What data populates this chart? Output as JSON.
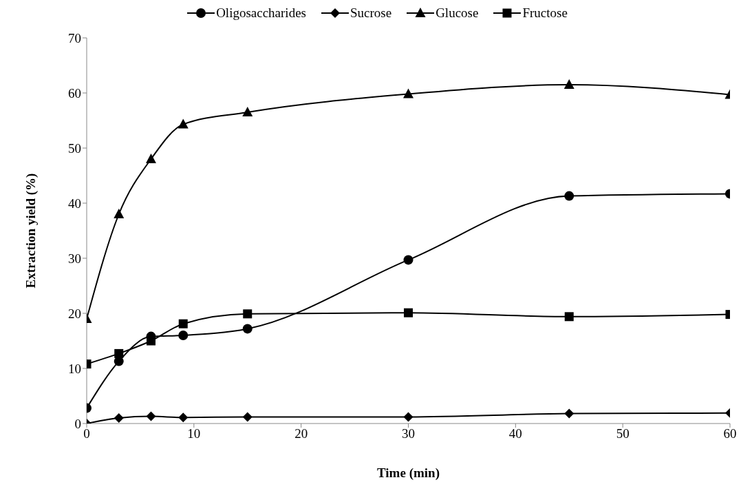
{
  "chart_data": {
    "type": "line",
    "xlabel": "Time (min)",
    "ylabel": "Extraction yield  (%)",
    "x": [
      0,
      3,
      6,
      9,
      15,
      30,
      45,
      60
    ],
    "xlim": [
      0,
      60
    ],
    "xticks": [
      0,
      10,
      20,
      30,
      40,
      50,
      60
    ],
    "ylim": [
      0,
      70
    ],
    "yticks": [
      0,
      10,
      20,
      30,
      40,
      50,
      60,
      70
    ],
    "grid": false,
    "legend": "top",
    "line_style": "solid",
    "series": [
      {
        "name": "Oligosaccharides",
        "color": "#000000",
        "marker": "circle",
        "values": [
          2.8,
          11.3,
          15.8,
          16,
          17.2,
          29.7,
          41.3,
          41.7
        ]
      },
      {
        "name": "Sucrose",
        "color": "#000000",
        "marker": "diamond",
        "values": [
          0,
          1,
          1.3,
          1.1,
          1.2,
          1.2,
          1.8,
          1.9
        ]
      },
      {
        "name": "Glucose",
        "color": "#000000",
        "marker": "triangle",
        "values": [
          19,
          38,
          48,
          54.3,
          56.5,
          59.8,
          61.5,
          59.7
        ]
      },
      {
        "name": "Fructose",
        "color": "#000000",
        "marker": "square",
        "values": [
          10.8,
          12.7,
          15,
          18.1,
          19.9,
          20.1,
          19.4,
          19.8
        ]
      }
    ]
  }
}
